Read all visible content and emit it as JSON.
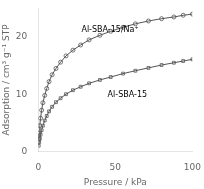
{
  "chart_data": {
    "type": "line",
    "xlabel": "Pressure / kPa",
    "ylabel": "Adsorption / cm³ g⁻¹ STP",
    "xlim": [
      0,
      100
    ],
    "ylim": [
      0,
      25
    ],
    "xticks": [
      0,
      50,
      100
    ],
    "yticks": [
      0,
      10,
      20
    ],
    "grid": false,
    "series": [
      {
        "color": "#555555",
        "marker": "circle",
        "x": [
          0.3,
          0.6,
          1.0,
          1.5,
          2.2,
          3.0,
          4.2,
          5.5,
          7.0,
          9.0,
          11.5,
          14.5,
          18.0,
          22.5,
          27.5,
          33.0,
          40.0,
          47.0,
          55.0,
          63.0,
          71.5,
          80.0,
          88.0,
          94.0,
          100.0
        ],
        "values": [
          2.2,
          3.2,
          4.5,
          5.8,
          7.2,
          8.5,
          9.8,
          11.0,
          12.2,
          13.4,
          14.5,
          15.6,
          16.7,
          17.7,
          18.6,
          19.5,
          20.3,
          21.0,
          21.7,
          22.3,
          22.8,
          23.2,
          23.5,
          23.8,
          24.0
        ]
      },
      {
        "color": "#555555",
        "marker": "square",
        "x": [
          0.3,
          0.6,
          1.0,
          1.5,
          2.2,
          3.0,
          4.2,
          5.5,
          7.0,
          9.0,
          11.5,
          14.5,
          18.0,
          22.5,
          27.5,
          33.0,
          40.0,
          47.0,
          55.0,
          63.0,
          71.5,
          80.0,
          88.0,
          94.0,
          100.0
        ],
        "values": [
          1.0,
          1.6,
          2.2,
          2.9,
          3.7,
          4.5,
          5.4,
          6.2,
          7.0,
          7.8,
          8.6,
          9.3,
          10.0,
          10.7,
          11.3,
          11.9,
          12.5,
          13.0,
          13.6,
          14.1,
          14.6,
          15.1,
          15.5,
          15.8,
          16.1
        ]
      }
    ],
    "annotations": [
      {
        "text": "Al-SBA-15/Na⁺",
        "x": 28,
        "y": 20.5
      },
      {
        "text": "Al-SBA-15",
        "x": 45,
        "y": 9.2
      }
    ]
  }
}
